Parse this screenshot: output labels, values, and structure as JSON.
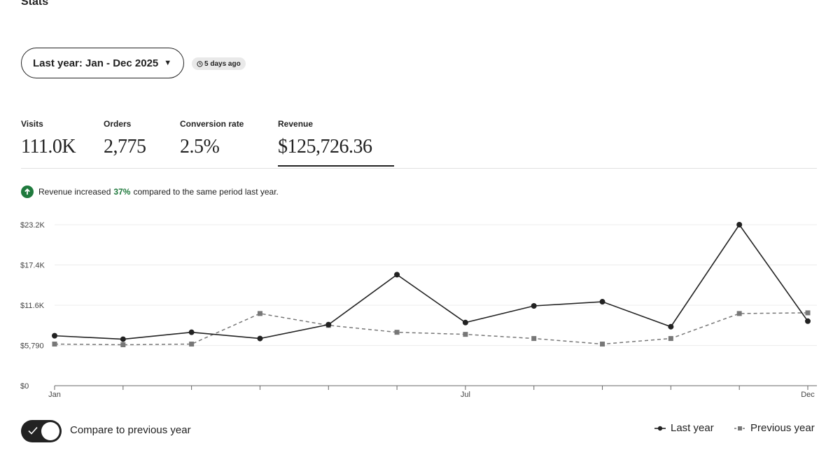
{
  "page": {
    "title": "Stats"
  },
  "controls": {
    "date_range_label": "Last year: Jan - Dec 2025",
    "updated_badge": "5 days ago"
  },
  "metrics": [
    {
      "label": "Visits",
      "value": "111.0K"
    },
    {
      "label": "Orders",
      "value": "2,775"
    },
    {
      "label": "Conversion rate",
      "value": "2.5%"
    },
    {
      "label": "Revenue",
      "value": "$125,726.36",
      "selected": true
    }
  ],
  "insight": {
    "prefix": "Revenue increased",
    "percent": "37%",
    "suffix": "compared to the same period last year."
  },
  "compare": {
    "label": "Compare to previous year",
    "enabled": true
  },
  "icons": {
    "caret": "caret-down-icon",
    "clock": "clock-icon",
    "up_arrow": "arrow-up-circle-icon",
    "check": "check-icon"
  },
  "colors": {
    "positive": "#1f7a3d",
    "series_current": "#222222",
    "series_previous": "#777777"
  },
  "chart_data": {
    "type": "line",
    "x_tick_labels": [
      "Jan",
      "Jul",
      "Dec"
    ],
    "y_tick_labels": [
      "$0",
      "$5,790",
      "$11.6K",
      "$17.4K",
      "$23.2K"
    ],
    "y_ticks": [
      0,
      5790,
      11600,
      17400,
      23200
    ],
    "ylim": [
      0,
      23200
    ],
    "x": [
      1,
      2,
      3,
      4,
      5,
      6,
      7,
      8,
      9,
      10,
      11,
      12
    ],
    "grid": true,
    "legend_position": "bottom-right",
    "series": [
      {
        "name": "Last year",
        "style": "solid",
        "marker": "circle",
        "values": [
          7200,
          6700,
          7700,
          6800,
          8800,
          16000,
          9100,
          11500,
          12100,
          8500,
          23200,
          9300
        ]
      },
      {
        "name": "Previous year",
        "style": "dashed",
        "marker": "square",
        "values": [
          6000,
          5900,
          6000,
          10400,
          8700,
          7700,
          7400,
          6800,
          6000,
          6800,
          10400,
          10500
        ]
      }
    ]
  }
}
